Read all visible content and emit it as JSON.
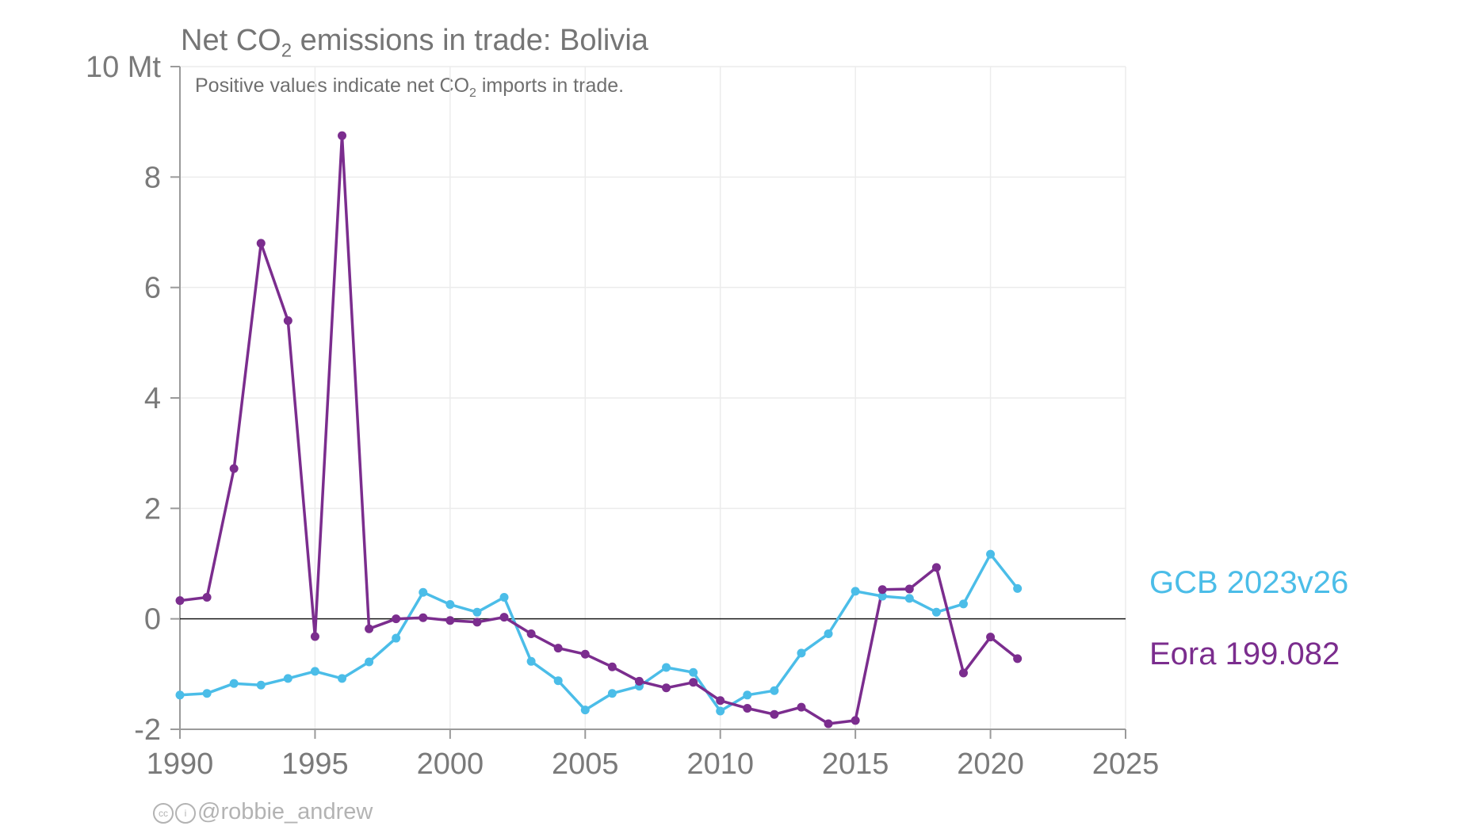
{
  "chart_data": {
    "type": "line",
    "title_parts": [
      "Net CO",
      "2",
      " emissions in trade: Bolivia"
    ],
    "subtitle_parts": [
      "Positive values indicate net CO",
      "2",
      " imports in trade."
    ],
    "y_unit_label": "10 Mt",
    "xlim": [
      1990,
      2025
    ],
    "ylim": [
      -2,
      10
    ],
    "x_ticks": [
      1990,
      1995,
      2000,
      2005,
      2010,
      2015,
      2020,
      2025
    ],
    "y_ticks": [
      -2,
      0,
      2,
      4,
      6,
      8,
      10
    ],
    "y_tick_labels": [
      "-2",
      "0",
      "2",
      "4",
      "6",
      "8",
      "10 Mt"
    ],
    "grid": true,
    "legend_placement": "right, next to line ends",
    "series": [
      {
        "name": "GCB 2023v26",
        "color": "#4bbde8",
        "x": [
          1990,
          1991,
          1992,
          1993,
          1994,
          1995,
          1996,
          1997,
          1998,
          1999,
          2000,
          2001,
          2002,
          2003,
          2004,
          2005,
          2006,
          2007,
          2008,
          2009,
          2010,
          2011,
          2012,
          2013,
          2014,
          2015,
          2016,
          2017,
          2018,
          2019,
          2020,
          2021
        ],
        "values": [
          -1.38,
          -1.35,
          -1.17,
          -1.2,
          -1.08,
          -0.95,
          -1.08,
          -0.78,
          -0.35,
          0.48,
          0.26,
          0.12,
          0.39,
          -0.77,
          -1.12,
          -1.65,
          -1.35,
          -1.22,
          -0.88,
          -0.97,
          -1.67,
          -1.38,
          -1.3,
          -0.62,
          -0.27,
          0.5,
          0.41,
          0.37,
          0.12,
          0.27,
          1.17,
          0.55
        ]
      },
      {
        "name": "Eora 199.082",
        "color": "#7b2d8e",
        "x": [
          1990,
          1991,
          1992,
          1993,
          1994,
          1995,
          1996,
          1997,
          1998,
          1999,
          2000,
          2001,
          2002,
          2003,
          2004,
          2005,
          2006,
          2007,
          2008,
          2009,
          2010,
          2011,
          2012,
          2013,
          2014,
          2015,
          2016,
          2017,
          2018,
          2019,
          2020,
          2021
        ],
        "values": [
          0.33,
          0.39,
          2.72,
          6.8,
          5.4,
          -0.32,
          8.75,
          -0.18,
          0.0,
          0.02,
          -0.03,
          -0.06,
          0.03,
          -0.27,
          -0.53,
          -0.64,
          -0.87,
          -1.13,
          -1.25,
          -1.15,
          -1.48,
          -1.62,
          -1.73,
          -1.6,
          -1.9,
          -1.84,
          0.53,
          0.54,
          0.93,
          -0.98,
          -0.33,
          -0.72
        ]
      }
    ]
  },
  "credit": {
    "icons": [
      "cc-icon",
      "by-icon"
    ],
    "text": "@robbie_andrew"
  }
}
